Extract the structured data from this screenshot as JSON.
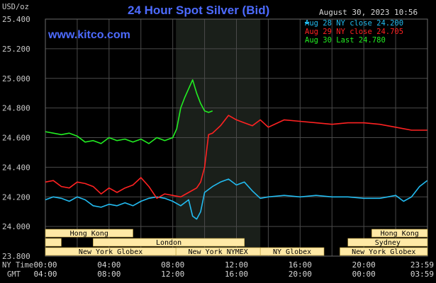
{
  "header": {
    "title": "24 Hour Spot Silver (Bid)",
    "website": "www.kitco.com",
    "datetime": "August 30, 2023 10:56",
    "unit_label": "USD/oz"
  },
  "axis_labels": {
    "ny_time": "NY Time",
    "gmt": "GMT"
  },
  "legend": [
    {
      "text": "Aug 28 NY close 24.200",
      "color": "#22bbf0"
    },
    {
      "text": "Aug 29 NY close 24.705",
      "color": "#ff2222"
    },
    {
      "text": "Aug 30 Last 24.780",
      "color": "#22ee22"
    }
  ],
  "sessions": {
    "row1": [
      "Hong Kong",
      "Hong Kong"
    ],
    "row2": [
      "London",
      "Sydney"
    ],
    "row3": [
      "New York Globex",
      "New York NYMEX",
      "NY Globex",
      "New York Globex"
    ]
  },
  "colors": {
    "background": "#000000",
    "grid": "#4a4a4a",
    "session_fill": "#ffe9a6",
    "highlight_band": "#1a1f1a",
    "title": "#4d6bff"
  },
  "chart_data": {
    "type": "line",
    "title": "24 Hour Spot Silver (Bid)",
    "ylabel": "USD/oz",
    "ylim": [
      23.8,
      25.4
    ],
    "yticks": [
      "25.400",
      "25.200",
      "25.000",
      "24.800",
      "24.600",
      "24.400",
      "24.200",
      "24.000",
      "23.800"
    ],
    "xticks_ny": [
      "00:00",
      "04:00",
      "08:00",
      "12:00",
      "16:00",
      "20:00",
      "23:59"
    ],
    "xticks_gmt": [
      "04:00",
      "08:00",
      "12:00",
      "16:00",
      "20:00",
      "00:00",
      "03:59"
    ],
    "x_hour_range": [
      0,
      24
    ],
    "grid": true,
    "legend_position": "top-right",
    "series": [
      {
        "name": "Aug 28 NY close 24.200",
        "color": "#22bbf0",
        "x": [
          0,
          0.5,
          1,
          1.5,
          2,
          2.5,
          3,
          3.5,
          4,
          4.5,
          5,
          5.5,
          6,
          6.5,
          7,
          7.5,
          8,
          8.5,
          9,
          9.25,
          9.5,
          9.75,
          10,
          10.5,
          11,
          11.5,
          12,
          12.5,
          13,
          13.5,
          14,
          15,
          16,
          17,
          18,
          19,
          20,
          21,
          21.5,
          22,
          22.5,
          23,
          23.5,
          23.98
        ],
        "y": [
          24.18,
          24.2,
          24.19,
          24.17,
          24.2,
          24.18,
          24.14,
          24.13,
          24.15,
          24.14,
          24.16,
          24.14,
          24.17,
          24.19,
          24.2,
          24.19,
          24.17,
          24.14,
          24.18,
          24.07,
          24.05,
          24.1,
          24.23,
          24.27,
          24.3,
          24.32,
          24.28,
          24.3,
          24.24,
          24.19,
          24.2,
          24.21,
          24.2,
          24.21,
          24.2,
          24.2,
          24.19,
          24.19,
          24.2,
          24.21,
          24.17,
          24.2,
          24.27,
          24.31
        ]
      },
      {
        "name": "Aug 29 NY close 24.705",
        "color": "#ff2222",
        "x": [
          0,
          0.5,
          1,
          1.5,
          2,
          2.5,
          3,
          3.5,
          4,
          4.5,
          5,
          5.5,
          6,
          6.5,
          7,
          7.5,
          8,
          8.5,
          9,
          9.5,
          9.75,
          10,
          10.25,
          10.5,
          11,
          11.5,
          12,
          12.5,
          13,
          13.5,
          14,
          15,
          16,
          17,
          18,
          19,
          20,
          21,
          22,
          23,
          23.98
        ],
        "y": [
          24.3,
          24.31,
          24.27,
          24.26,
          24.3,
          24.29,
          24.27,
          24.22,
          24.26,
          24.23,
          24.26,
          24.28,
          24.33,
          24.27,
          24.19,
          24.22,
          24.21,
          24.2,
          24.23,
          24.26,
          24.3,
          24.4,
          24.62,
          24.63,
          24.68,
          24.75,
          24.72,
          24.7,
          24.68,
          24.72,
          24.67,
          24.72,
          24.71,
          24.7,
          24.69,
          24.7,
          24.7,
          24.69,
          24.67,
          24.65,
          24.65
        ]
      },
      {
        "name": "Aug 30 Last 24.780",
        "color": "#22ee22",
        "x": [
          0,
          0.5,
          1,
          1.5,
          2,
          2.5,
          3,
          3.5,
          4,
          4.5,
          5,
          5.5,
          6,
          6.5,
          7,
          7.5,
          8,
          8.25,
          8.5,
          8.75,
          9,
          9.25,
          9.5,
          9.75,
          10,
          10.25,
          10.5
        ],
        "y": [
          24.64,
          24.63,
          24.62,
          24.63,
          24.61,
          24.57,
          24.58,
          24.56,
          24.6,
          24.58,
          24.59,
          24.57,
          24.59,
          24.56,
          24.6,
          24.58,
          24.6,
          24.66,
          24.8,
          24.87,
          24.93,
          24.99,
          24.9,
          24.83,
          24.78,
          24.77,
          24.78
        ]
      }
    ]
  }
}
